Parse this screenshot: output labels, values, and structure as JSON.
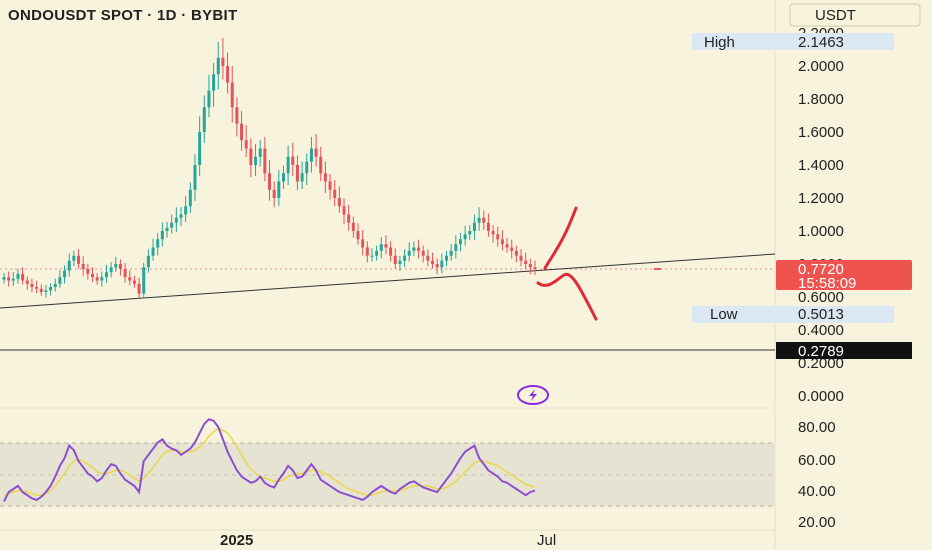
{
  "title": "ONDOUSDT SPOT · 1D · BYBIT",
  "currency_button": "USDT",
  "colors": {
    "background": "#f8f3dc",
    "up": "#26a69a",
    "down": "#e5535a",
    "rsi_line": "#8a4fd1",
    "rsi_ma": "#e8d84a",
    "drawing": "#e02a37",
    "price_badge": "#ef5350",
    "badge_blue": "#dbe7f3",
    "black_badge": "#111111"
  },
  "price_axis": {
    "labels": [
      "2.2000",
      "2.0000",
      "1.8000",
      "1.6000",
      "1.4000",
      "1.2000",
      "1.0000",
      "0.8000",
      "0.6000",
      "0.4000",
      "0.2000",
      "0.0000"
    ]
  },
  "rsi_axis": {
    "labels": [
      "80.00",
      "60.00",
      "40.00",
      "20.00"
    ]
  },
  "markers": {
    "high_label": "High",
    "high_value": "2.1463",
    "low_label": "Low",
    "low_value": "0.5013",
    "last_price": "0.7720",
    "countdown": "15:58:09",
    "level_value": "0.2789"
  },
  "time_axis": {
    "labels": [
      "2025",
      "Jul"
    ]
  },
  "indicator_icon": "lightning-icon",
  "chart_data": {
    "type": "candlestick",
    "title": "ONDOUSDT SPOT · 1D · BYBIT",
    "ylim": [
      0,
      2.2
    ],
    "rsi_ylim": [
      20,
      80
    ],
    "rsi_band": [
      30,
      70
    ],
    "high": 2.1463,
    "low": 0.5013,
    "last": 0.772,
    "horizontal_level": 0.2789,
    "close_series": [
      0.72,
      0.7,
      0.71,
      0.74,
      0.7,
      0.68,
      0.66,
      0.65,
      0.63,
      0.64,
      0.66,
      0.68,
      0.72,
      0.76,
      0.82,
      0.85,
      0.8,
      0.77,
      0.74,
      0.72,
      0.7,
      0.72,
      0.75,
      0.78,
      0.8,
      0.77,
      0.72,
      0.7,
      0.68,
      0.62,
      0.78,
      0.85,
      0.9,
      0.95,
      1.0,
      1.02,
      1.05,
      1.08,
      1.1,
      1.15,
      1.25,
      1.4,
      1.6,
      1.75,
      1.85,
      1.95,
      2.05,
      2.0,
      1.9,
      1.75,
      1.65,
      1.55,
      1.5,
      1.4,
      1.45,
      1.5,
      1.35,
      1.25,
      1.2,
      1.3,
      1.35,
      1.45,
      1.4,
      1.3,
      1.35,
      1.42,
      1.5,
      1.45,
      1.35,
      1.3,
      1.25,
      1.2,
      1.15,
      1.1,
      1.05,
      1.0,
      0.95,
      0.9,
      0.85,
      0.85,
      0.88,
      0.92,
      0.9,
      0.85,
      0.8,
      0.82,
      0.85,
      0.88,
      0.9,
      0.88,
      0.85,
      0.82,
      0.8,
      0.78,
      0.82,
      0.85,
      0.88,
      0.92,
      0.95,
      0.98,
      1.0,
      1.05,
      1.08,
      1.05,
      1.0,
      0.98,
      0.95,
      0.92,
      0.9,
      0.88,
      0.85,
      0.82,
      0.8,
      0.78,
      0.77
    ],
    "rsi_series": [
      32,
      38,
      40,
      42,
      38,
      36,
      34,
      33,
      35,
      38,
      42,
      48,
      55,
      60,
      68,
      65,
      58,
      54,
      50,
      48,
      45,
      47,
      52,
      56,
      55,
      50,
      46,
      44,
      42,
      38,
      58,
      62,
      66,
      70,
      72,
      68,
      66,
      65,
      62,
      64,
      66,
      70,
      76,
      82,
      85,
      84,
      80,
      72,
      64,
      58,
      52,
      48,
      46,
      44,
      45,
      48,
      44,
      42,
      41,
      46,
      50,
      55,
      52,
      47,
      48,
      52,
      56,
      52,
      46,
      44,
      42,
      40,
      38,
      37,
      36,
      35,
      34,
      33,
      35,
      38,
      40,
      42,
      40,
      38,
      37,
      40,
      42,
      44,
      45,
      43,
      41,
      40,
      39,
      38,
      42,
      46,
      50,
      55,
      60,
      64,
      66,
      68,
      60,
      56,
      52,
      50,
      48,
      45,
      44,
      42,
      40,
      38,
      36,
      38,
      39
    ],
    "rsi_ma_series": [
      36,
      37,
      38,
      39,
      39,
      38,
      37,
      36,
      36,
      37,
      39,
      42,
      46,
      50,
      55,
      58,
      59,
      58,
      56,
      54,
      51,
      50,
      50,
      51,
      52,
      52,
      51,
      49,
      47,
      45,
      47,
      50,
      54,
      58,
      62,
      64,
      65,
      65,
      64,
      64,
      64,
      65,
      67,
      70,
      74,
      77,
      79,
      78,
      76,
      72,
      67,
      62,
      57,
      53,
      50,
      48,
      47,
      46,
      45,
      45,
      46,
      48,
      49,
      50,
      50,
      51,
      52,
      52,
      51,
      50,
      48,
      46,
      44,
      42,
      40,
      39,
      38,
      37,
      36,
      36,
      37,
      38,
      39,
      39,
      39,
      39,
      40,
      41,
      42,
      42,
      42,
      42,
      41,
      40,
      40,
      41,
      43,
      45,
      48,
      51,
      54,
      57,
      58,
      58,
      57,
      56,
      55,
      53,
      51,
      49,
      47,
      45,
      43,
      42,
      41
    ]
  }
}
